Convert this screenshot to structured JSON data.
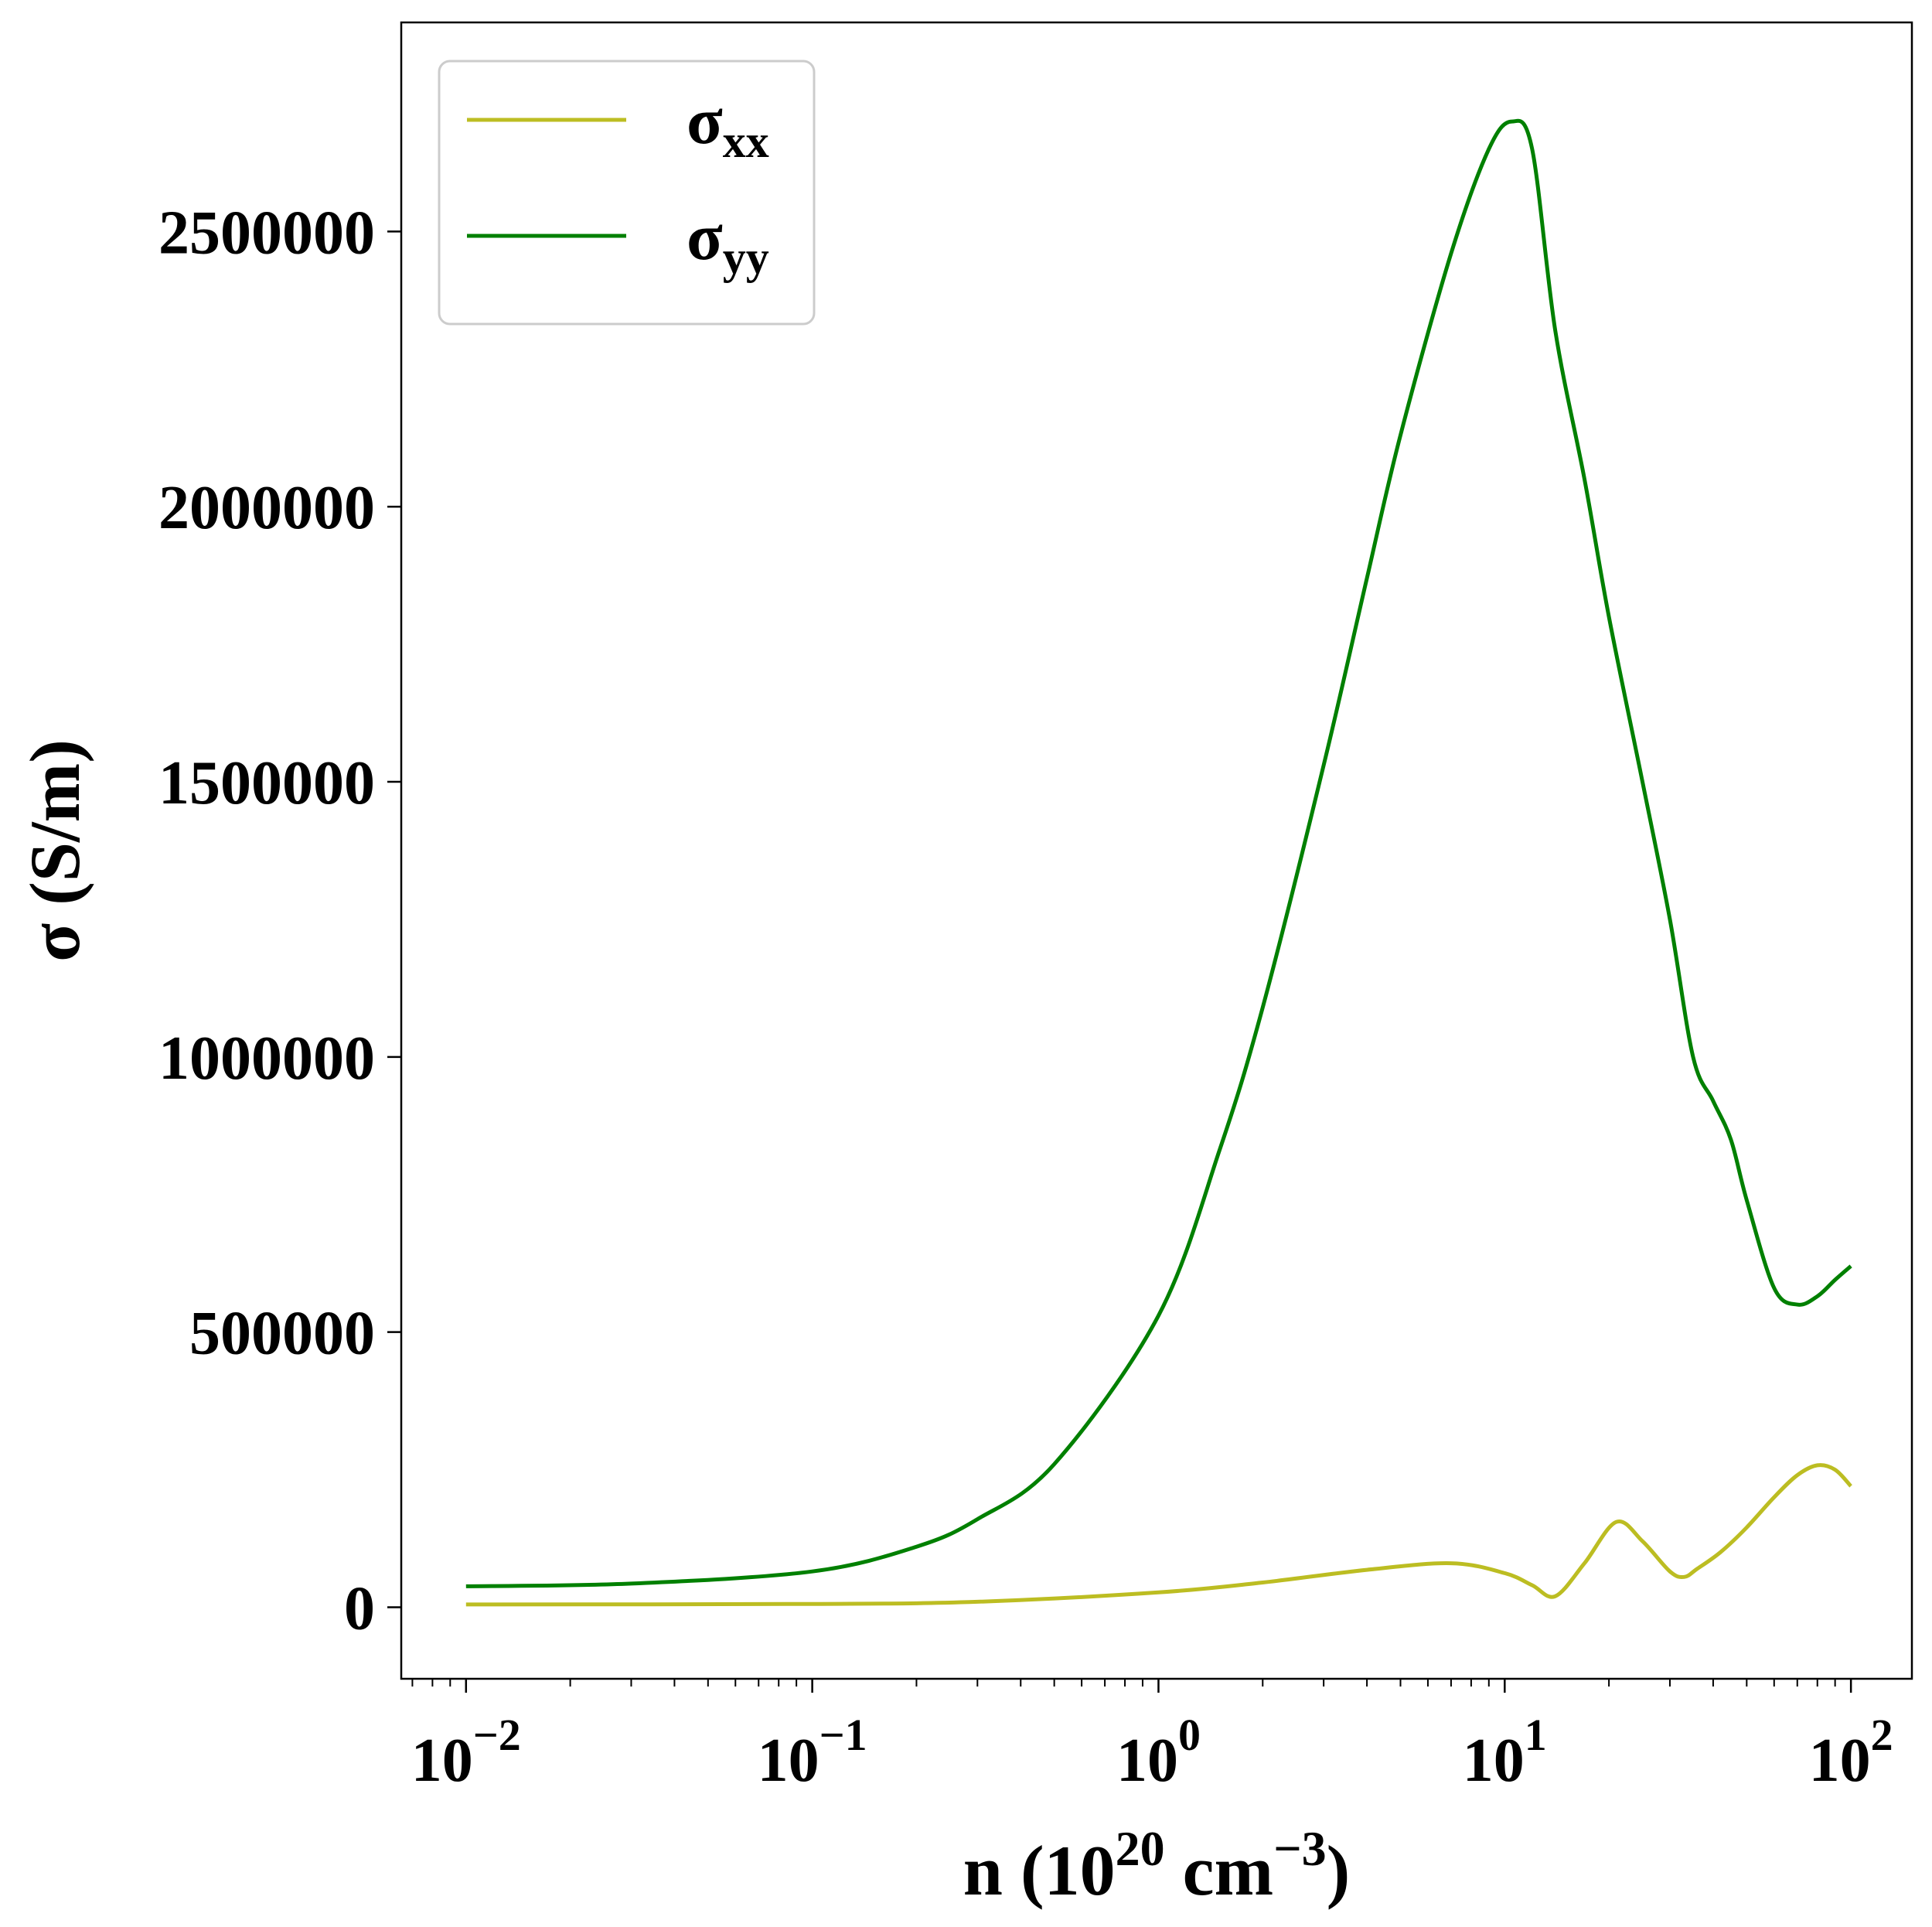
{
  "chart_data": {
    "type": "line",
    "xscale": "log",
    "xlim": [
      0.0065,
      150
    ],
    "ylim": [
      -130000,
      2880000
    ],
    "xlabel": {
      "text": "n (10",
      "sup1": "20",
      "mid": " cm",
      "sup2": "−3",
      "end": ")"
    },
    "ylabel": "σ (S/m)",
    "grid": false,
    "legend_position": "top-left",
    "xticks": [
      {
        "value": 0.01,
        "base": "10",
        "exp": "−2"
      },
      {
        "value": 0.1,
        "base": "10",
        "exp": "−1"
      },
      {
        "value": 1,
        "base": "10",
        "exp": "0"
      },
      {
        "value": 10,
        "base": "10",
        "exp": "1"
      },
      {
        "value": 100,
        "base": "10",
        "exp": "2"
      }
    ],
    "yticks": [
      {
        "value": 0,
        "label": "0"
      },
      {
        "value": 500000,
        "label": "500000"
      },
      {
        "value": 1000000,
        "label": "1000000"
      },
      {
        "value": 1500000,
        "label": "1500000"
      },
      {
        "value": 2000000,
        "label": "2000000"
      },
      {
        "value": 2500000,
        "label": "2500000"
      }
    ],
    "series": [
      {
        "name": "σxx",
        "name_main": "σ",
        "name_sub": "xx",
        "color": "#bcbd22",
        "x": [
          0.01,
          0.1,
          0.3,
          1,
          2,
          4,
          7,
          10,
          12,
          14,
          17,
          21,
          25,
          30,
          33,
          36,
          42,
          50,
          60,
          70,
          80,
          90,
          100
        ],
        "y": [
          5000,
          6000,
          10000,
          27000,
          45000,
          68000,
          80000,
          62000,
          40000,
          20000,
          80000,
          155000,
          120000,
          65000,
          55000,
          70000,
          100000,
          145000,
          200000,
          240000,
          258000,
          250000,
          220000
        ]
      },
      {
        "name": "σyy",
        "name_main": "σ",
        "name_sub": "yy",
        "color": "#008000",
        "x": [
          0.01,
          0.03,
          0.1,
          0.2,
          0.3,
          0.5,
          1,
          1.5,
          2,
          3,
          4,
          5,
          7,
          9,
          10.5,
          12,
          14,
          17,
          20,
          25,
          30,
          35,
          40,
          45,
          50,
          60,
          70,
          80,
          90,
          100
        ],
        "y": [
          38000,
          43000,
          65000,
          110000,
          160000,
          260000,
          530000,
          830000,
          1090000,
          1530000,
          1870000,
          2130000,
          2460000,
          2650000,
          2700000,
          2650000,
          2320000,
          2050000,
          1800000,
          1500000,
          1250000,
          1000000,
          920000,
          850000,
          740000,
          580000,
          550000,
          565000,
          595000,
          620000
        ]
      }
    ]
  }
}
